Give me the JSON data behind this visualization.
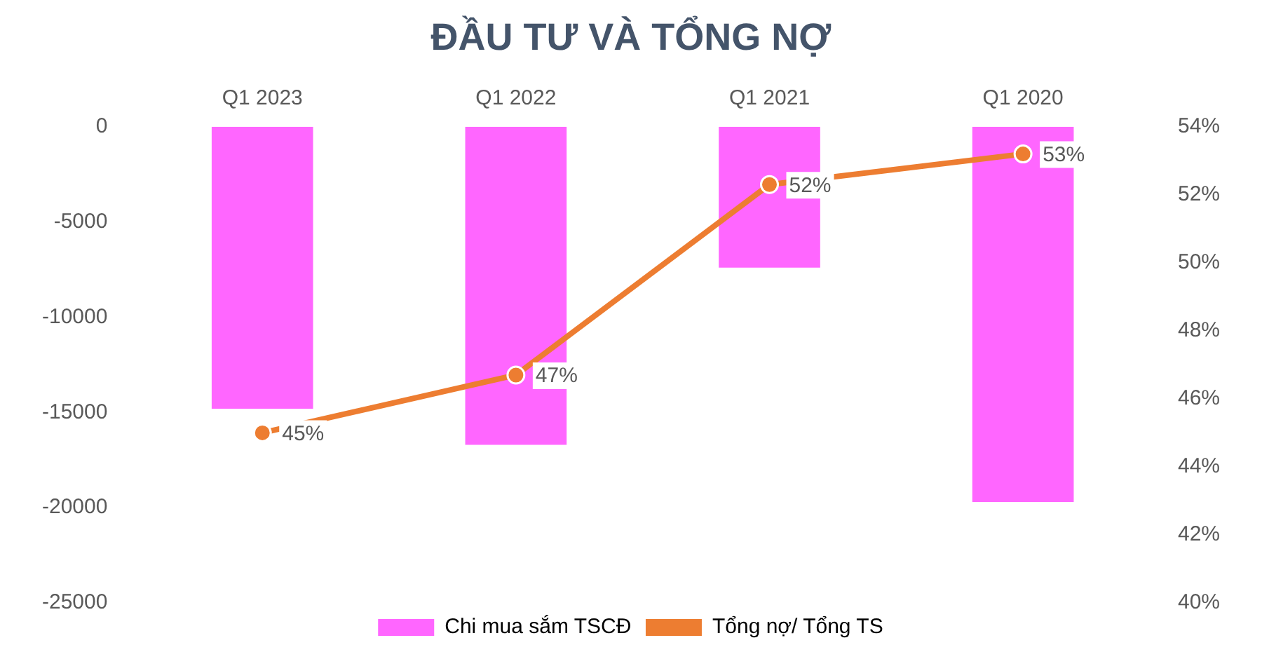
{
  "chart_data": {
    "type": "bar",
    "title": "ĐẦU TƯ VÀ TỔNG NỢ",
    "categories": [
      "Q1 2023",
      "Q1 2022",
      "Q1 2021",
      "Q1 2020"
    ],
    "series": [
      {
        "name": "Chi mua sắm TSCĐ",
        "color": "#ff66ff",
        "values": [
          -14800,
          -16700,
          -7400,
          -19700
        ]
      },
      {
        "name": "Tổng nợ/ Tổng TS",
        "type": "line",
        "axis": "y2",
        "color": "#ed7d31",
        "values": [
          45.0,
          46.7,
          52.3,
          53.2
        ],
        "value_labels": [
          "45%",
          "47%",
          "52%",
          "53%"
        ],
        "marker": "circle",
        "line_style": "solid"
      }
    ],
    "ylim": [
      -25000,
      0
    ],
    "yticks": [
      -25000,
      -20000,
      -15000,
      -10000,
      -5000,
      0
    ],
    "y2lim": [
      40,
      54
    ],
    "y2ticks": [
      {
        "value": 40,
        "label": "40%"
      },
      {
        "value": 42,
        "label": "42%"
      },
      {
        "value": 44,
        "label": "44%"
      },
      {
        "value": 46,
        "label": "46%"
      },
      {
        "value": 48,
        "label": "48%"
      },
      {
        "value": 50,
        "label": "50%"
      },
      {
        "value": 52,
        "label": "52%"
      },
      {
        "value": 54,
        "label": "54%"
      }
    ],
    "grid": false,
    "legend": "bottom"
  }
}
